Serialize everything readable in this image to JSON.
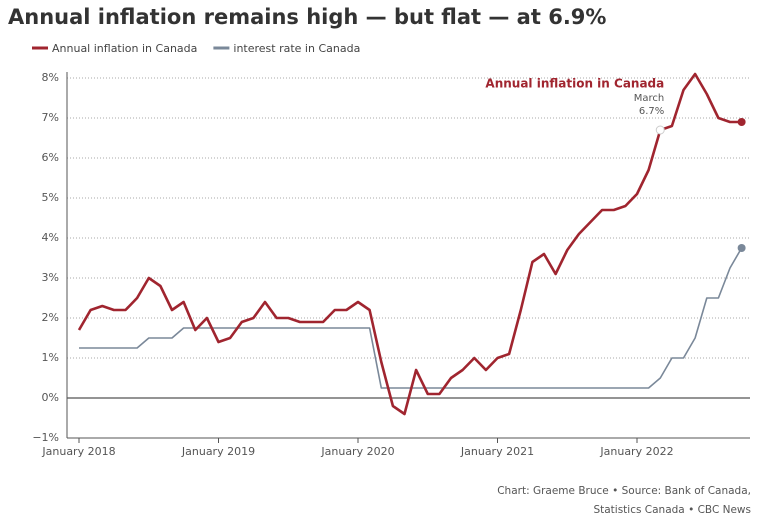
{
  "chart_data": {
    "type": "line",
    "title": "Annual inflation remains high — but flat — at 6.9%",
    "x": [
      "2018-01",
      "2018-02",
      "2018-03",
      "2018-04",
      "2018-05",
      "2018-06",
      "2018-07",
      "2018-08",
      "2018-09",
      "2018-10",
      "2018-11",
      "2018-12",
      "2019-01",
      "2019-02",
      "2019-03",
      "2019-04",
      "2019-05",
      "2019-06",
      "2019-07",
      "2019-08",
      "2019-09",
      "2019-10",
      "2019-11",
      "2019-12",
      "2020-01",
      "2020-02",
      "2020-03",
      "2020-04",
      "2020-05",
      "2020-06",
      "2020-07",
      "2020-08",
      "2020-09",
      "2020-10",
      "2020-11",
      "2020-12",
      "2021-01",
      "2021-02",
      "2021-03",
      "2021-04",
      "2021-05",
      "2021-06",
      "2021-07",
      "2021-08",
      "2021-09",
      "2021-10",
      "2021-11",
      "2021-12",
      "2022-01",
      "2022-02",
      "2022-03",
      "2022-04",
      "2022-05",
      "2022-06",
      "2022-07",
      "2022-08",
      "2022-09",
      "2022-10"
    ],
    "series": [
      {
        "name": "Annual inflation in Canada",
        "color": "#a0252f",
        "values": [
          1.7,
          2.2,
          2.3,
          2.2,
          2.2,
          2.5,
          3.0,
          2.8,
          2.2,
          2.4,
          1.7,
          2.0,
          1.4,
          1.5,
          1.9,
          2.0,
          2.4,
          2.0,
          2.0,
          1.9,
          1.9,
          1.9,
          2.2,
          2.2,
          2.4,
          2.2,
          0.9,
          -0.2,
          -0.4,
          0.7,
          0.1,
          0.1,
          0.5,
          0.7,
          1.0,
          0.7,
          1.0,
          1.1,
          2.2,
          3.4,
          3.6,
          3.1,
          3.7,
          4.1,
          4.4,
          4.7,
          4.7,
          4.8,
          5.1,
          5.7,
          6.7,
          6.8,
          7.7,
          8.1,
          7.6,
          7.0,
          6.9,
          6.9
        ]
      },
      {
        "name": "interest rate in Canada",
        "color": "#7a8899",
        "values": [
          1.25,
          1.25,
          1.25,
          1.25,
          1.25,
          1.25,
          1.5,
          1.5,
          1.5,
          1.75,
          1.75,
          1.75,
          1.75,
          1.75,
          1.75,
          1.75,
          1.75,
          1.75,
          1.75,
          1.75,
          1.75,
          1.75,
          1.75,
          1.75,
          1.75,
          1.75,
          0.25,
          0.25,
          0.25,
          0.25,
          0.25,
          0.25,
          0.25,
          0.25,
          0.25,
          0.25,
          0.25,
          0.25,
          0.25,
          0.25,
          0.25,
          0.25,
          0.25,
          0.25,
          0.25,
          0.25,
          0.25,
          0.25,
          0.25,
          0.25,
          0.5,
          1.0,
          1.0,
          1.5,
          2.5,
          2.5,
          3.25,
          3.75
        ]
      }
    ],
    "ylim": [
      -1,
      8
    ],
    "yticks": [
      {
        "value": -1,
        "label": "−1%"
      },
      {
        "value": 0,
        "label": "0%"
      },
      {
        "value": 1,
        "label": "1%"
      },
      {
        "value": 2,
        "label": "2%"
      },
      {
        "value": 3,
        "label": "3%"
      },
      {
        "value": 4,
        "label": "4%"
      },
      {
        "value": 5,
        "label": "5%"
      },
      {
        "value": 6,
        "label": "6%"
      },
      {
        "value": 7,
        "label": "7%"
      },
      {
        "value": 8,
        "label": "8%"
      }
    ],
    "xticks": [
      {
        "value": "2018-01",
        "label": "January 2018"
      },
      {
        "value": "2019-01",
        "label": "January 2019"
      },
      {
        "value": "2020-01",
        "label": "January 2020"
      },
      {
        "value": "2021-01",
        "label": "January 2021"
      },
      {
        "value": "2022-01",
        "label": "January 2022"
      }
    ],
    "grid": true,
    "annotation": {
      "text": "Annual inflation in Canada",
      "label": "March",
      "value_label": "6.7%",
      "x": "2022-03",
      "y": 6.7
    },
    "source": [
      "Chart: Graeme Bruce • Source: Bank of Canada,",
      "Statistics Canada • CBC News"
    ]
  }
}
